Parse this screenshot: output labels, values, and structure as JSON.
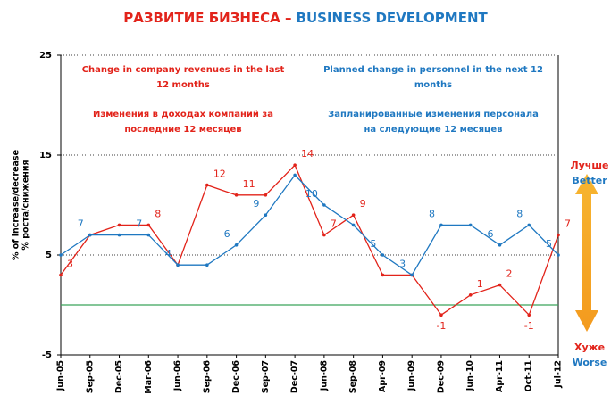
{
  "chart_data": {
    "type": "line",
    "title": [
      {
        "text": "РАЗВИТИЕ БИЗНЕСА –",
        "color": "#e2231a"
      },
      {
        "text": "BUSINESS DEVELOPMENT",
        "color": "#1f78c1"
      }
    ],
    "ylabel": [
      "% of increase/decrease",
      "% роста/снижения"
    ],
    "categories": [
      "Jun-05",
      "Sep-05",
      "Dec-05",
      "Mar-06",
      "Jun-06",
      "Sep-06",
      "Dec-06",
      "Sep-07",
      "Dec-07",
      "Jun-08",
      "Sep-08",
      "Apr-09",
      "Jun-09",
      "Dec-09",
      "Jun-10",
      "Apr-11",
      "Oct-11",
      "Jul-12"
    ],
    "series": [
      {
        "color": "#e2231a",
        "values": [
          3,
          7,
          8,
          8,
          4,
          12,
          11,
          11,
          14,
          7,
          9,
          3,
          3,
          -1,
          1,
          2,
          -1,
          7
        ],
        "value_labels": [
          "3",
          null,
          null,
          "8",
          null,
          "12",
          "11",
          null,
          "14",
          "7",
          "9",
          null,
          null,
          "-1",
          "1",
          "2",
          "-1",
          "7"
        ]
      },
      {
        "color": "#1f78c1",
        "values": [
          5,
          7,
          7,
          7,
          4,
          4,
          6,
          9,
          13,
          10,
          8,
          5,
          3,
          8,
          8,
          6,
          8,
          5
        ],
        "value_labels": [
          null,
          "7",
          null,
          "7",
          "4",
          null,
          "6",
          "9",
          null,
          "10",
          null,
          "5",
          "3",
          "8",
          null,
          "6",
          "8",
          "5"
        ]
      }
    ],
    "ylim": [
      -5,
      25
    ],
    "yticks": [
      -5,
      5,
      15,
      25
    ],
    "zero_line": 0,
    "zero_line_color": "#3aa35a",
    "annotations": [
      {
        "color": "#e2231a",
        "lines": [
          "Change in company revenues in the last",
          "12 months"
        ]
      },
      {
        "color": "#e2231a",
        "lines": [
          "Изменения в доходах компаний за",
          "последние 12 месяцев"
        ]
      },
      {
        "color": "#1f78c1",
        "lines": [
          "Planned change in personnel in the next 12",
          "months"
        ]
      },
      {
        "color": "#1f78c1",
        "lines": [
          "Запланированные изменения персонала",
          "на следующие 12 месяцев"
        ]
      }
    ],
    "better": [
      {
        "text": "Лучше",
        "color": "#e2231a"
      },
      {
        "text": "Better",
        "color": "#1f78c1"
      }
    ],
    "worse": [
      {
        "text": "Хуже",
        "color": "#e2231a"
      },
      {
        "text": "Worse",
        "color": "#1f78c1"
      }
    ]
  }
}
